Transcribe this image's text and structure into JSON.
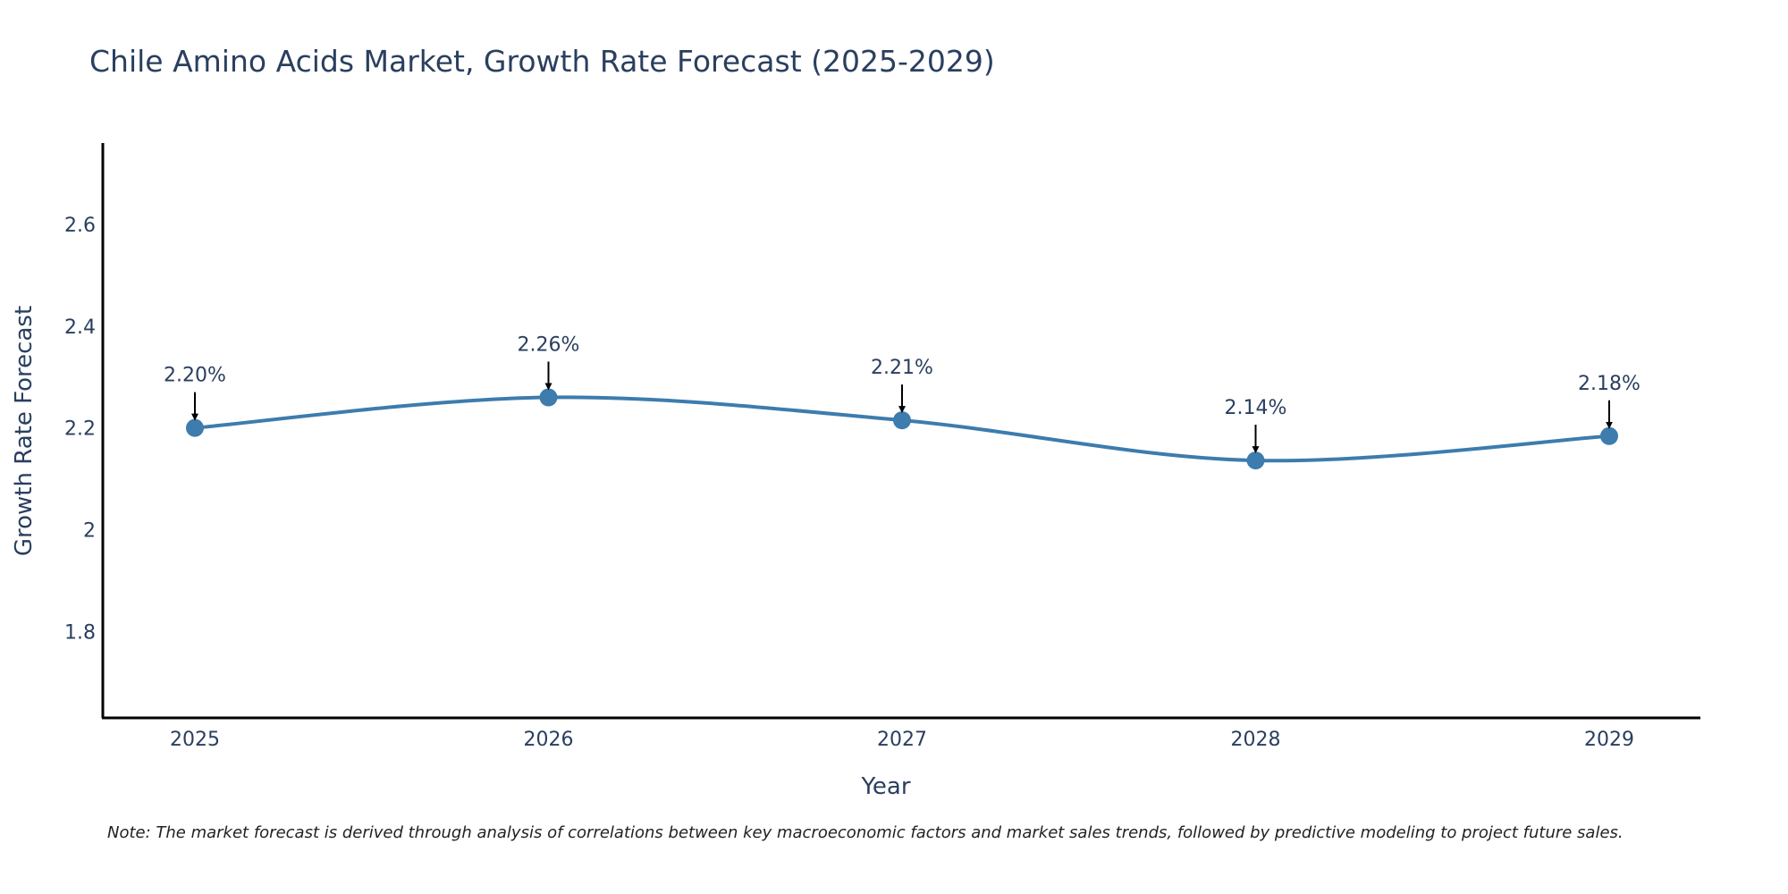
{
  "chart_data": {
    "type": "line",
    "title": "Chile Amino Acids Market, Growth Rate Forecast (2025-2029)",
    "xlabel": "Year",
    "ylabel": "Growth Rate Forecast",
    "categories": [
      "2025",
      "2026",
      "2027",
      "2028",
      "2029"
    ],
    "series": [
      {
        "name": "Growth Rate Forecast",
        "values": [
          2.2,
          2.26,
          2.215,
          2.136,
          2.184
        ],
        "labels": [
          "2.20%",
          "2.26%",
          "2.21%",
          "2.14%",
          "2.18%"
        ],
        "color": "#3d7cad"
      }
    ],
    "ylim": [
      1.63,
      2.76
    ],
    "yticks": [
      1.8,
      2.0,
      2.2,
      2.4,
      2.6
    ],
    "ytick_labels": [
      "1.8",
      "2",
      "2.2",
      "2.4",
      "2.6"
    ],
    "grid": false,
    "line_shape": "spline",
    "note": "Note: The market forecast is derived through analysis of correlations between key macroeconomic factors and market sales trends, followed by predictive modeling to project future sales."
  }
}
